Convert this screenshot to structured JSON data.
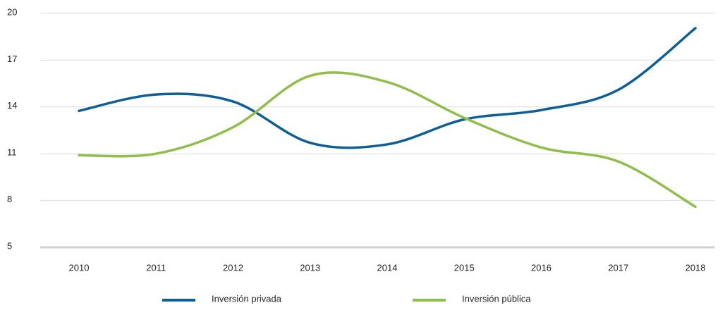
{
  "chart_data": {
    "type": "line",
    "categories": [
      "2010",
      "2011",
      "2012",
      "2013",
      "2014",
      "2015",
      "2016",
      "2017",
      "2018"
    ],
    "series": [
      {
        "name": "Inversión privada",
        "color": "#0e5f97",
        "values": [
          13.75,
          14.8,
          14.35,
          11.7,
          11.6,
          13.2,
          13.8,
          15.1,
          19.05
        ]
      },
      {
        "name": "Inversión pública",
        "color": "#8fbe4a",
        "values": [
          10.9,
          11.0,
          12.7,
          16.0,
          15.6,
          13.3,
          11.4,
          10.5,
          7.6
        ]
      }
    ],
    "ylim": [
      5,
      20
    ],
    "yticks": [
      5,
      8,
      11,
      14,
      17,
      20
    ],
    "grid": true,
    "legend": "bottom"
  }
}
